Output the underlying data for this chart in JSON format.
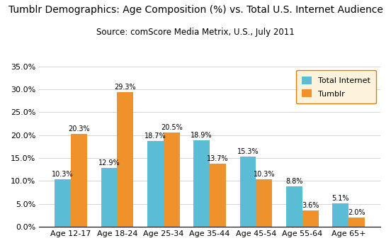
{
  "title": "Tumblr Demographics: Age Composition (%) vs. Total U.S. Internet Audience",
  "subtitle": "Source: comScore Media Metrix, U.S., July 2011",
  "categories": [
    "Age 12-17",
    "Age 18-24",
    "Age 25-34",
    "Age 35-44",
    "Age 45-54",
    "Age 55-64",
    "Age 65+"
  ],
  "total_internet": [
    10.3,
    12.9,
    18.7,
    18.9,
    15.3,
    8.8,
    5.1
  ],
  "tumblr": [
    20.3,
    29.3,
    20.5,
    13.7,
    10.3,
    3.6,
    2.0
  ],
  "color_internet": "#5BBCD6",
  "color_tumblr": "#F0922B",
  "legend_box_facecolor": "#FDF3DC",
  "legend_box_edgecolor": "#D4820A",
  "ylim": [
    0,
    35
  ],
  "yticks": [
    0,
    5,
    10,
    15,
    20,
    25,
    30,
    35
  ],
  "ytick_labels": [
    "0.0%",
    "5.0%",
    "10.0%",
    "15.0%",
    "20.0%",
    "25.0%",
    "30.0%",
    "35.0%"
  ],
  "title_fontsize": 10,
  "subtitle_fontsize": 8.5,
  "label_fontsize": 7,
  "tick_fontsize": 8,
  "bar_width": 0.35
}
